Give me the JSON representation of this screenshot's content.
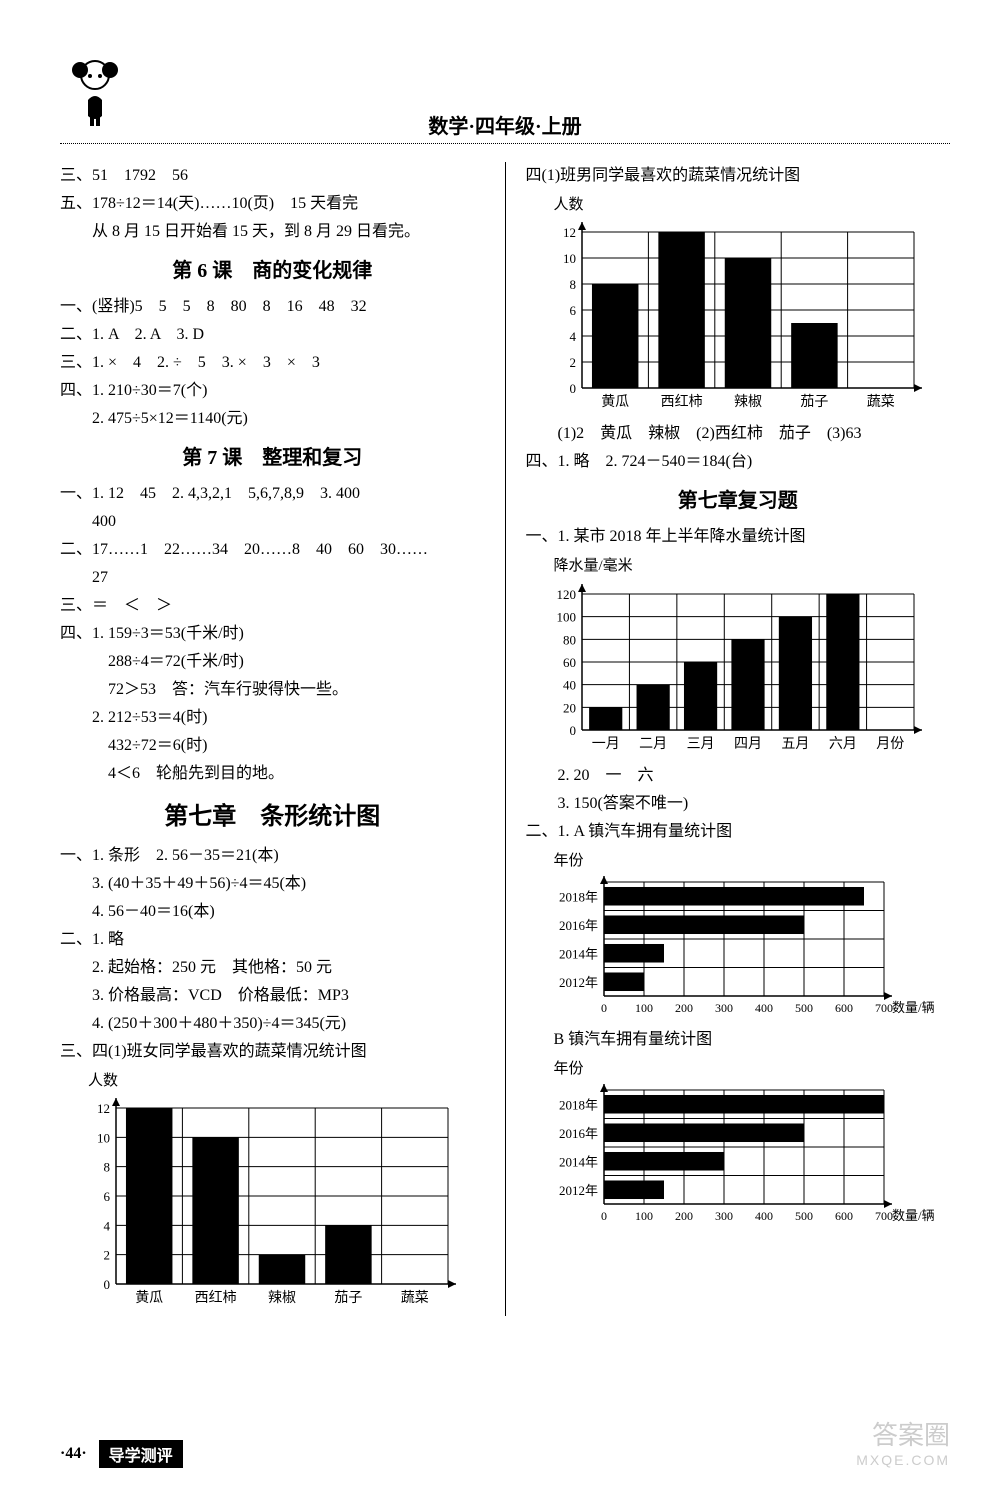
{
  "header": {
    "title": "数学·四年级·上册"
  },
  "left": {
    "lines_a": [
      "三、51　1792　56",
      "五、178÷12＝14(天)……10(页)　15 天看完",
      "　　从 8 月 15 日开始看 15 天，到 8 月 29 日看完。"
    ],
    "sec6_title": "第 6 课　商的变化规律",
    "lines_b": [
      "一、(竖排)5　5　5　8　80　8　16　48　32",
      "二、1. A　2. A　3. D",
      "三、1. ×　4　2. ÷　5　3. ×　3　×　3",
      "四、1. 210÷30＝7(个)",
      "　　2. 475÷5×12＝1140(元)"
    ],
    "sec7_title": "第 7 课　整理和复习",
    "lines_c": [
      "一、1. 12　45　2. 4,3,2,1　5,6,7,8,9　3. 400",
      "　　400",
      "二、17……1　22……34　20……8　40　60　30……",
      "　　27",
      "三、＝　＜　＞",
      "四、1. 159÷3＝53(千米/时)",
      "　　　288÷4＝72(千米/时)",
      "　　　72＞53　答：汽车行驶得快一些。",
      "　　2. 212÷53＝4(时)",
      "　　　432÷72＝6(时)",
      "　　　4＜6　轮船先到目的地。"
    ],
    "ch7_title": "第七章　条形统计图",
    "lines_d": [
      "一、1. 条形　2. 56－35＝21(本)",
      "　　3. (40＋35＋49＋56)÷4＝45(本)",
      "　　4. 56－40＝16(本)",
      "二、1. 略",
      "　　2. 起始格：250 元　其他格：50 元",
      "　　3. 价格最高：VCD　价格最低：MP3",
      "　　4. (250＋300＋480＋350)÷4＝345(元)",
      "三、四(1)班女同学最喜欢的蔬菜情况统计图"
    ],
    "chart_girls": {
      "type": "bar",
      "y_label": "人数",
      "x_label": "蔬菜",
      "categories": [
        "黄瓜",
        "西红柿",
        "辣椒",
        "茄子"
      ],
      "values": [
        12,
        10,
        2,
        4
      ],
      "ymax": 12,
      "ytick_step": 2,
      "bar_color": "#000000",
      "grid_color": "#000000",
      "background_color": "#ffffff"
    }
  },
  "right": {
    "boys_chart_title": "四(1)班男同学最喜欢的蔬菜情况统计图",
    "chart_boys": {
      "type": "bar",
      "y_label": "人数",
      "x_label": "蔬菜",
      "categories": [
        "黄瓜",
        "西红柿",
        "辣椒",
        "茄子"
      ],
      "values": [
        8,
        12,
        10,
        5
      ],
      "ymax": 12,
      "ytick_step": 2,
      "bar_color": "#000000",
      "grid_color": "#000000",
      "background_color": "#ffffff"
    },
    "lines_after_boys": [
      "　　(1)2　黄瓜　辣椒　(2)西红柿　茄子　(3)63",
      "四、1. 略　2. 724－540＝184(台)"
    ],
    "review_title": "第七章复习题",
    "rain_line": "一、1. 某市 2018 年上半年降水量统计图",
    "chart_rain": {
      "type": "bar",
      "y_label": "降水量/毫米",
      "x_label": "月份",
      "categories": [
        "一月",
        "二月",
        "三月",
        "四月",
        "五月",
        "六月"
      ],
      "values": [
        20,
        40,
        60,
        80,
        100,
        120
      ],
      "ymax": 120,
      "ytick_step": 20,
      "bar_color": "#000000",
      "grid_color": "#000000",
      "background_color": "#ffffff"
    },
    "lines_after_rain": [
      "　　2. 20　一　六",
      "　　3. 150(答案不唯一)"
    ],
    "cars_line": "二、1. A 镇汽车拥有量统计图",
    "chart_carsA": {
      "type": "hbar",
      "y_label": "年份",
      "x_label": "数量/辆",
      "categories": [
        "2018年",
        "2016年",
        "2014年",
        "2012年"
      ],
      "values": [
        650,
        500,
        150,
        100
      ],
      "xmax": 700,
      "xtick_step": 100,
      "bar_color": "#000000",
      "grid_color": "#000000",
      "background_color": "#ffffff"
    },
    "carsB_title": "B 镇汽车拥有量统计图",
    "chart_carsB": {
      "type": "hbar",
      "y_label": "年份",
      "x_label": "数量/辆",
      "categories": [
        "2018年",
        "2016年",
        "2014年",
        "2012年"
      ],
      "values": [
        700,
        500,
        300,
        150
      ],
      "xmax": 700,
      "xtick_step": 100,
      "bar_color": "#000000",
      "grid_color": "#000000",
      "background_color": "#ffffff"
    }
  },
  "footer": {
    "page": "·44·",
    "tab": "导学测评"
  },
  "watermark": {
    "main": "答案圈",
    "sub": "MXQE.COM"
  }
}
